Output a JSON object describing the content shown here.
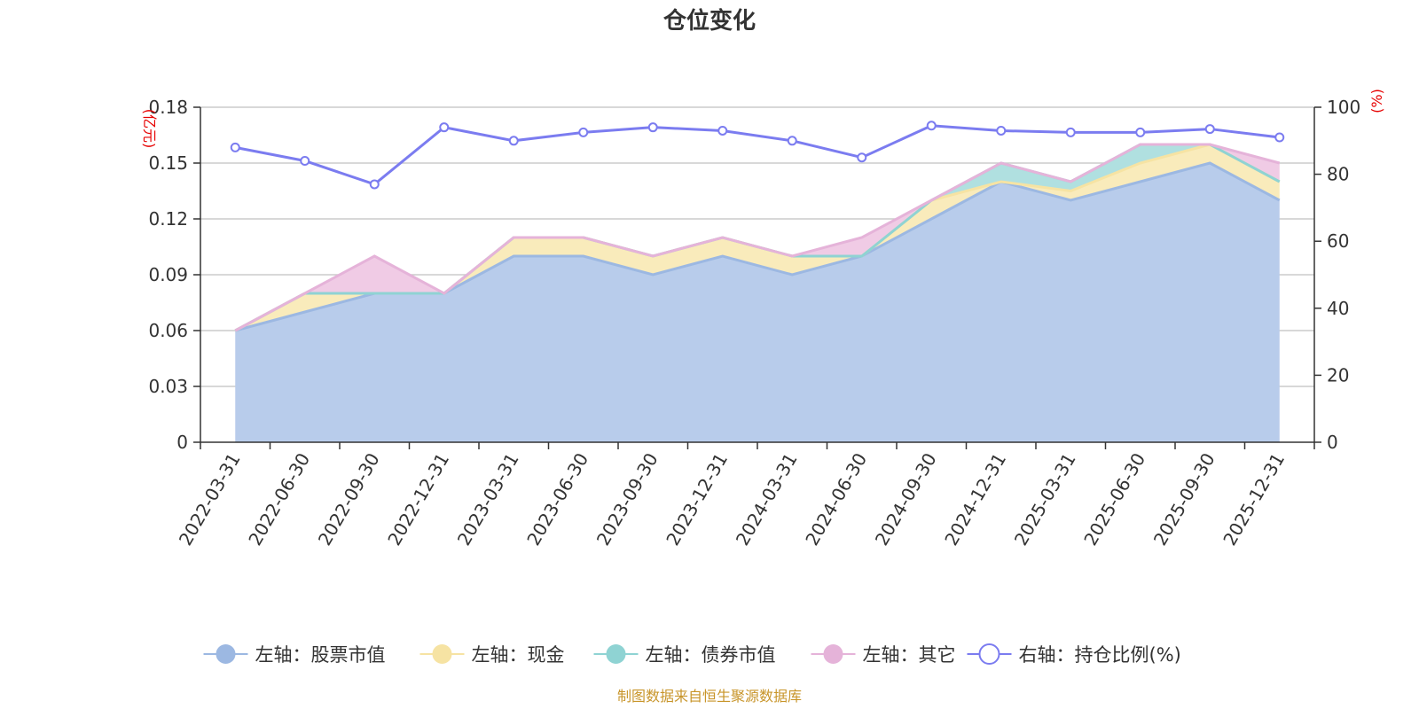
{
  "chart_data": {
    "type": "area",
    "title": "仓位变化",
    "categories": [
      "2022-03-31",
      "2022-06-30",
      "2022-09-30",
      "2022-12-31",
      "2023-03-31",
      "2023-06-30",
      "2023-09-30",
      "2023-12-31",
      "2024-03-31",
      "2024-06-30",
      "2024-09-30",
      "2024-12-31",
      "2025-03-31",
      "2025-06-30",
      "2025-09-30",
      "2025-12-31"
    ],
    "y_left": {
      "unit": "(亿元)",
      "ylim": [
        0,
        0.18
      ],
      "ticks": [
        "0",
        "0.03",
        "0.06",
        "0.09",
        "0.12",
        "0.15",
        "0.18"
      ],
      "tick_values": [
        0,
        0.03,
        0.06,
        0.09,
        0.12,
        0.15,
        0.18
      ]
    },
    "y_right": {
      "unit": "(%)",
      "ylim": [
        0,
        100
      ],
      "ticks": [
        "0",
        "20",
        "40",
        "60",
        "80",
        "100"
      ],
      "tick_values": [
        0,
        20,
        40,
        60,
        80,
        100
      ]
    },
    "grid": true,
    "stacked": true,
    "series": [
      {
        "name": "左轴：股票市值",
        "axis": "left",
        "color": "#9cb8e2",
        "fill": "#b8cceb",
        "values": [
          0.06,
          0.07,
          0.08,
          0.08,
          0.1,
          0.1,
          0.09,
          0.1,
          0.09,
          0.1,
          0.12,
          0.14,
          0.13,
          0.14,
          0.15,
          0.13
        ]
      },
      {
        "name": "左轴：现金",
        "axis": "left",
        "color": "#f6e3a3",
        "fill": "#f9ebbb",
        "values": [
          0.0,
          0.01,
          0.0,
          0.0,
          0.01,
          0.01,
          0.01,
          0.01,
          0.01,
          0.0,
          0.01,
          0.0,
          0.005,
          0.01,
          0.01,
          0.01
        ]
      },
      {
        "name": "左轴：债券市值",
        "axis": "left",
        "color": "#8fd3d3",
        "fill": "#b0e0e0",
        "values": [
          0.0,
          0.0,
          0.0,
          0.0,
          0.0,
          0.0,
          0.0,
          0.0,
          0.0,
          0.0,
          0.0,
          0.01,
          0.005,
          0.01,
          0.0,
          0.0
        ]
      },
      {
        "name": "左轴：其它",
        "axis": "left",
        "color": "#e5b3d9",
        "fill": "#f0cbe5",
        "values": [
          0.0,
          0.0,
          0.02,
          0.0,
          0.0,
          0.0,
          0.0,
          0.0,
          0.0,
          0.01,
          0.0,
          0.0,
          0.0,
          0.0,
          0.0,
          0.01
        ]
      },
      {
        "name": "右轴：持仓比例(%)",
        "axis": "right",
        "color": "#7b7cf0",
        "values": [
          88,
          84,
          77,
          94,
          90,
          92.5,
          94,
          93,
          90,
          85,
          94.5,
          93,
          92.5,
          92.5,
          93.5,
          91
        ]
      }
    ],
    "legend_position": "bottom",
    "footer": "制图数据来自恒生聚源数据库"
  }
}
